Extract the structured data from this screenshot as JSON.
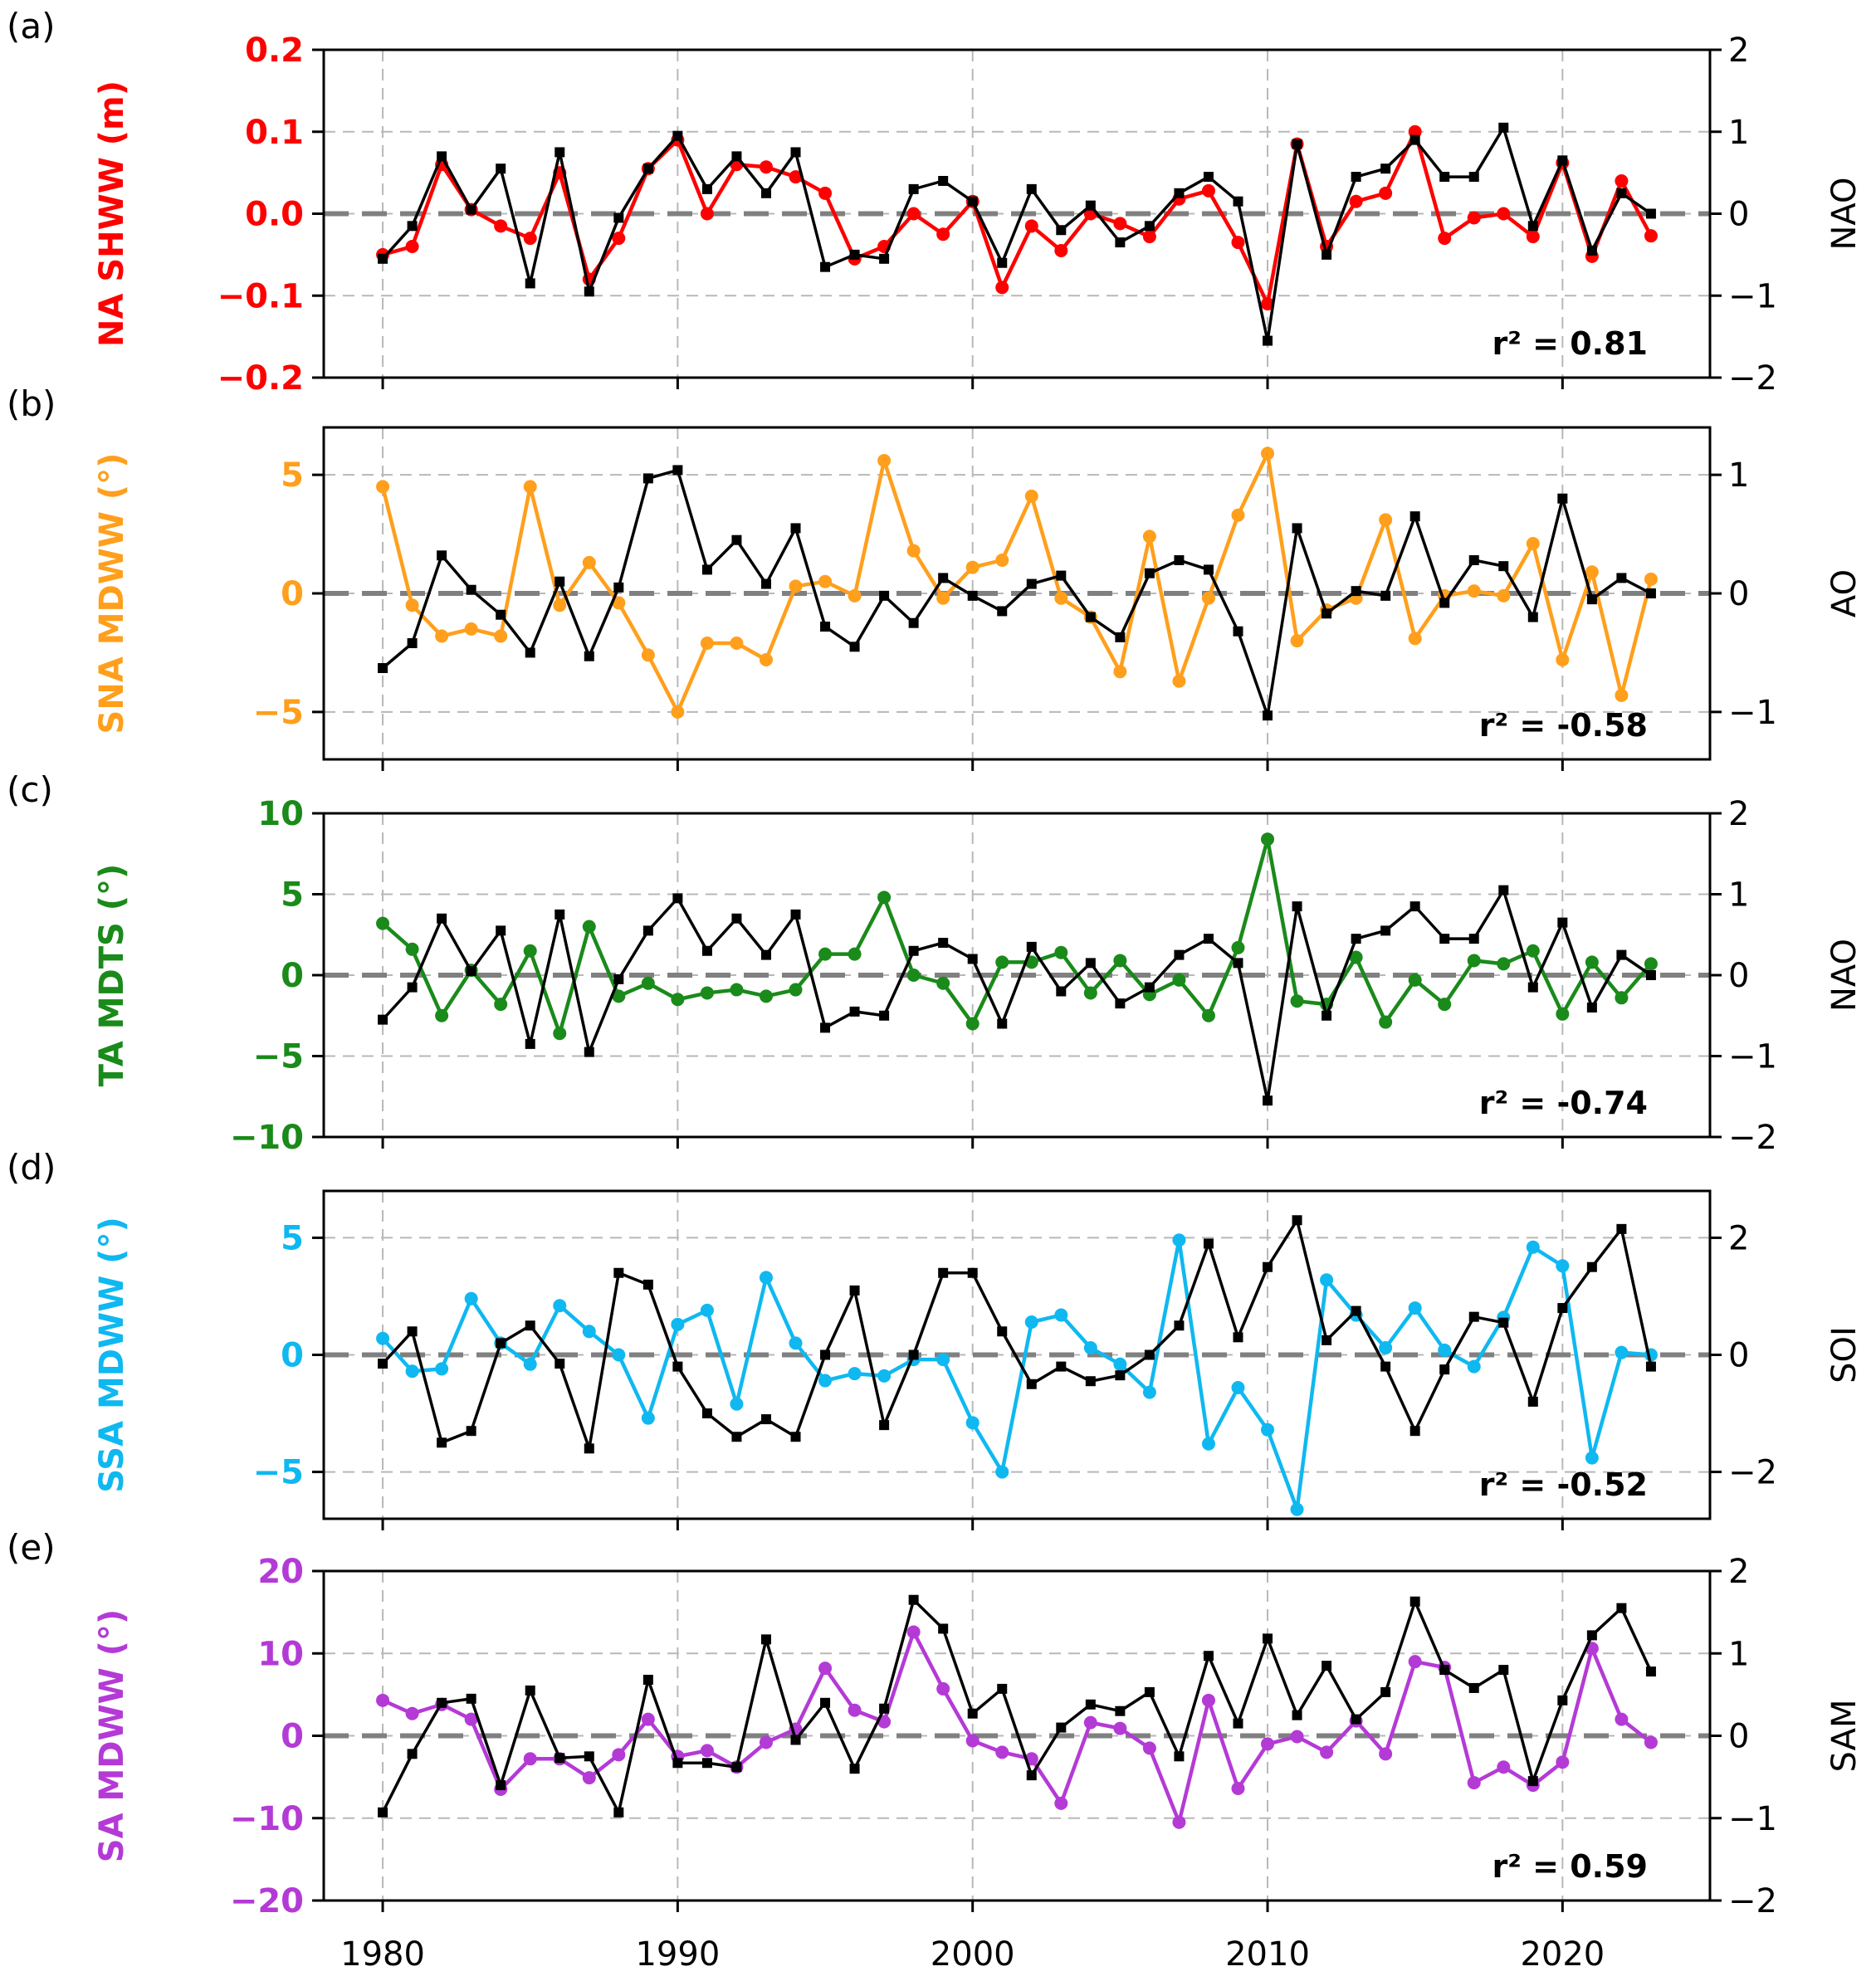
{
  "chart_data": [
    {
      "panel_label": "(a)",
      "type": "line",
      "x": [
        1980,
        1981,
        1982,
        1983,
        1984,
        1985,
        1986,
        1987,
        1988,
        1989,
        1990,
        1991,
        1992,
        1993,
        1994,
        1995,
        1996,
        1997,
        1998,
        1999,
        2000,
        2001,
        2002,
        2003,
        2004,
        2005,
        2006,
        2007,
        2008,
        2009,
        2010,
        2011,
        2012,
        2013,
        2014,
        2015,
        2016,
        2017,
        2018,
        2019,
        2020,
        2021,
        2022,
        2023
      ],
      "left": {
        "label": "NA SHWW (m)",
        "color": "#ff0000",
        "marker": "circle",
        "ylim": [
          -0.2,
          0.2
        ],
        "ticks": [
          -0.2,
          -0.1,
          0.0,
          0.1,
          0.2
        ],
        "tick_labels": [
          "−0.2",
          "−0.1",
          "0.0",
          "0.1",
          "0.2"
        ],
        "values": [
          -0.05,
          -0.04,
          0.06,
          0.005,
          -0.015,
          -0.03,
          0.05,
          -0.08,
          -0.03,
          0.055,
          0.09,
          0.0,
          0.06,
          0.057,
          0.045,
          0.025,
          -0.055,
          -0.04,
          0.0,
          -0.025,
          0.015,
          -0.09,
          -0.015,
          -0.045,
          0.0,
          -0.012,
          -0.028,
          0.018,
          0.028,
          -0.035,
          -0.11,
          0.085,
          -0.04,
          0.015,
          0.025,
          0.1,
          -0.03,
          -0.005,
          0.0,
          -0.028,
          0.062,
          -0.052,
          0.04,
          -0.027
        ]
      },
      "right": {
        "label": "NAO",
        "color": "#000000",
        "marker": "square",
        "ylim": [
          -2,
          2
        ],
        "ticks": [
          -2,
          -1,
          0,
          1,
          2
        ],
        "tick_labels": [
          "−2",
          "−1",
          "0",
          "1",
          "2"
        ],
        "values": [
          -0.55,
          -0.15,
          0.7,
          0.05,
          0.55,
          -0.85,
          0.75,
          -0.95,
          -0.05,
          0.55,
          0.95,
          0.3,
          0.7,
          0.25,
          0.75,
          -0.65,
          -0.5,
          -0.55,
          0.3,
          0.4,
          0.15,
          -0.6,
          0.3,
          -0.2,
          0.1,
          -0.35,
          -0.15,
          0.25,
          0.45,
          0.15,
          -1.55,
          0.85,
          -0.5,
          0.45,
          0.55,
          0.9,
          0.45,
          0.45,
          1.05,
          -0.15,
          0.65,
          -0.45,
          0.25,
          0.0
        ]
      },
      "annotation": "r² = 0.81",
      "zero_line": true,
      "grid": true
    },
    {
      "panel_label": "(b)",
      "type": "line",
      "x": [
        1980,
        1981,
        1982,
        1983,
        1984,
        1985,
        1986,
        1987,
        1988,
        1989,
        1990,
        1991,
        1992,
        1993,
        1994,
        1995,
        1996,
        1997,
        1998,
        1999,
        2000,
        2001,
        2002,
        2003,
        2004,
        2005,
        2006,
        2007,
        2008,
        2009,
        2010,
        2011,
        2012,
        2013,
        2014,
        2015,
        2016,
        2017,
        2018,
        2019,
        2020,
        2021,
        2022,
        2023
      ],
      "left": {
        "label": "SNA MDWW (°)",
        "color": "#ff9f1c",
        "marker": "circle",
        "ylim": [
          -7,
          7
        ],
        "ticks": [
          -5,
          0,
          5
        ],
        "tick_labels": [
          "−5",
          "0",
          "5"
        ],
        "values": [
          4.5,
          -0.5,
          -1.8,
          -1.5,
          -1.8,
          4.5,
          -0.5,
          1.3,
          -0.4,
          -2.6,
          -5.0,
          -2.1,
          -2.1,
          -2.8,
          0.3,
          0.5,
          -0.1,
          5.6,
          1.8,
          -0.2,
          1.1,
          1.4,
          4.1,
          -0.2,
          -1.0,
          -3.3,
          2.4,
          -3.7,
          -0.2,
          3.3,
          5.9,
          -2.0,
          -0.7,
          -0.2,
          3.1,
          -1.9,
          -0.1,
          0.1,
          -0.1,
          2.1,
          -2.8,
          0.9,
          -4.3,
          0.6
        ]
      },
      "right": {
        "label": "AO",
        "color": "#000000",
        "marker": "square",
        "ylim": [
          -1.4,
          1.4
        ],
        "ticks": [
          -1,
          0,
          1
        ],
        "tick_labels": [
          "−1",
          "0",
          "1"
        ],
        "values": [
          -0.63,
          -0.42,
          0.32,
          0.03,
          -0.18,
          -0.5,
          0.1,
          -0.53,
          0.05,
          0.97,
          1.04,
          0.2,
          0.45,
          0.08,
          0.55,
          -0.28,
          -0.45,
          -0.02,
          -0.25,
          0.13,
          -0.02,
          -0.15,
          0.08,
          0.15,
          -0.2,
          -0.37,
          0.17,
          0.28,
          0.2,
          -0.32,
          -1.03,
          0.55,
          -0.17,
          0.02,
          -0.02,
          0.65,
          -0.08,
          0.28,
          0.23,
          -0.2,
          0.8,
          -0.05,
          0.13,
          0.0
        ]
      },
      "annotation": "r² = -0.58",
      "zero_line": true,
      "grid": true
    },
    {
      "panel_label": "(c)",
      "type": "line",
      "x": [
        1980,
        1981,
        1982,
        1983,
        1984,
        1985,
        1986,
        1987,
        1988,
        1989,
        1990,
        1991,
        1992,
        1993,
        1994,
        1995,
        1996,
        1997,
        1998,
        1999,
        2000,
        2001,
        2002,
        2003,
        2004,
        2005,
        2006,
        2007,
        2008,
        2009,
        2010,
        2011,
        2012,
        2013,
        2014,
        2015,
        2016,
        2017,
        2018,
        2019,
        2020,
        2021,
        2022,
        2023
      ],
      "left": {
        "label": "TA MDTS (°)",
        "color": "#1a8a1a",
        "marker": "circle",
        "ylim": [
          -10,
          10
        ],
        "ticks": [
          -10,
          -5,
          0,
          5,
          10
        ],
        "tick_labels": [
          "−10",
          "−5",
          "0",
          "5",
          "10"
        ],
        "values": [
          3.2,
          1.6,
          -2.5,
          0.3,
          -1.8,
          1.5,
          -3.6,
          3.0,
          -1.3,
          -0.5,
          -1.5,
          -1.1,
          -0.9,
          -1.3,
          -0.9,
          1.3,
          1.3,
          4.8,
          0.0,
          -0.5,
          -3.0,
          0.8,
          0.8,
          1.4,
          -1.1,
          0.9,
          -1.2,
          -0.3,
          -2.5,
          1.7,
          8.4,
          -1.6,
          -1.8,
          1.1,
          -2.9,
          -0.3,
          -1.8,
          0.9,
          0.7,
          1.5,
          -2.4,
          0.8,
          -1.4,
          0.7
        ]
      },
      "right": {
        "label": "NAO",
        "color": "#000000",
        "marker": "square",
        "ylim": [
          -2,
          2
        ],
        "ticks": [
          -2,
          -1,
          0,
          1,
          2
        ],
        "tick_labels": [
          "−2",
          "−1",
          "0",
          "1",
          "2"
        ],
        "values": [
          -0.55,
          -0.15,
          0.7,
          0.05,
          0.55,
          -0.85,
          0.75,
          -0.95,
          -0.05,
          0.55,
          0.95,
          0.3,
          0.7,
          0.25,
          0.75,
          -0.65,
          -0.45,
          -0.5,
          0.3,
          0.4,
          0.2,
          -0.6,
          0.35,
          -0.2,
          0.15,
          -0.35,
          -0.15,
          0.25,
          0.45,
          0.15,
          -1.55,
          0.85,
          -0.5,
          0.45,
          0.55,
          0.85,
          0.45,
          0.45,
          1.05,
          -0.15,
          0.65,
          -0.4,
          0.25,
          0.0
        ]
      },
      "annotation": "r² = -0.74",
      "zero_line": true,
      "grid": true
    },
    {
      "panel_label": "(d)",
      "type": "line",
      "x": [
        1980,
        1981,
        1982,
        1983,
        1984,
        1985,
        1986,
        1987,
        1988,
        1989,
        1990,
        1991,
        1992,
        1993,
        1994,
        1995,
        1996,
        1997,
        1998,
        1999,
        2000,
        2001,
        2002,
        2003,
        2004,
        2005,
        2006,
        2007,
        2008,
        2009,
        2010,
        2011,
        2012,
        2013,
        2014,
        2015,
        2016,
        2017,
        2018,
        2019,
        2020,
        2021,
        2022,
        2023
      ],
      "left": {
        "label": "SSA MDWW (°)",
        "color": "#0fb8f0",
        "marker": "circle",
        "ylim": [
          -7,
          7
        ],
        "ticks": [
          -5,
          0,
          5
        ],
        "tick_labels": [
          "−5",
          "0",
          "5"
        ],
        "values": [
          0.7,
          -0.7,
          -0.6,
          2.4,
          0.5,
          -0.4,
          2.1,
          1.0,
          0.0,
          -2.7,
          1.3,
          1.9,
          -2.1,
          3.3,
          0.5,
          -1.1,
          -0.8,
          -0.9,
          -0.2,
          -0.2,
          -2.9,
          -5.0,
          1.4,
          1.7,
          0.3,
          -0.4,
          -1.6,
          4.9,
          -3.8,
          -1.4,
          -3.2,
          -6.6,
          3.2,
          1.7,
          0.3,
          2.0,
          0.2,
          -0.5,
          1.6,
          4.6,
          3.8,
          -4.4,
          0.1,
          0.0
        ]
      },
      "right": {
        "label": "SOI",
        "color": "#000000",
        "marker": "square",
        "ylim": [
          -2.8,
          2.8
        ],
        "ticks": [
          -2,
          0,
          2
        ],
        "tick_labels": [
          "−2",
          "0",
          "2"
        ],
        "values": [
          -0.15,
          0.4,
          -1.5,
          -1.3,
          0.2,
          0.5,
          -0.15,
          -1.6,
          1.4,
          1.2,
          -0.2,
          -1.0,
          -1.4,
          -1.1,
          -1.4,
          0.0,
          1.1,
          -1.2,
          0.0,
          1.4,
          1.4,
          0.4,
          -0.5,
          -0.2,
          -0.45,
          -0.35,
          0.0,
          0.5,
          1.9,
          0.3,
          1.5,
          2.3,
          0.25,
          0.75,
          -0.2,
          -1.3,
          -0.25,
          0.65,
          0.55,
          -0.8,
          0.8,
          1.5,
          2.15,
          -0.2
        ]
      },
      "annotation": "r² = -0.52",
      "zero_line": true,
      "grid": true
    },
    {
      "panel_label": "(e)",
      "type": "line",
      "x": [
        1980,
        1981,
        1982,
        1983,
        1984,
        1985,
        1986,
        1987,
        1988,
        1989,
        1990,
        1991,
        1992,
        1993,
        1994,
        1995,
        1996,
        1997,
        1998,
        1999,
        2000,
        2001,
        2002,
        2003,
        2004,
        2005,
        2006,
        2007,
        2008,
        2009,
        2010,
        2011,
        2012,
        2013,
        2014,
        2015,
        2016,
        2017,
        2018,
        2019,
        2020,
        2021,
        2022,
        2023
      ],
      "left": {
        "label": "SA MDWW (°)",
        "color": "#b43ad6",
        "marker": "circle",
        "ylim": [
          -20,
          20
        ],
        "ticks": [
          -20,
          -10,
          0,
          10,
          20
        ],
        "tick_labels": [
          "−20",
          "−10",
          "0",
          "10",
          "20"
        ],
        "values": [
          4.3,
          2.7,
          3.8,
          2.0,
          -6.5,
          -2.8,
          -2.8,
          -5.1,
          -2.3,
          2.0,
          -2.5,
          -1.8,
          -3.8,
          -0.8,
          0.8,
          8.2,
          3.1,
          1.7,
          12.6,
          5.7,
          -0.6,
          -2.0,
          -2.8,
          -8.2,
          1.6,
          0.9,
          -1.5,
          -10.5,
          4.3,
          -6.4,
          -1.0,
          -0.1,
          -2.0,
          1.8,
          -2.2,
          9.0,
          8.3,
          -5.7,
          -3.8,
          -6.0,
          -3.2,
          10.6,
          2.0,
          -0.8
        ]
      },
      "right": {
        "label": "SAM",
        "color": "#000000",
        "marker": "square",
        "ylim": [
          -2,
          2
        ],
        "ticks": [
          -2,
          -1,
          0,
          1,
          2
        ],
        "tick_labels": [
          "−2",
          "−1",
          "0",
          "1",
          "2"
        ],
        "values": [
          -0.93,
          -0.22,
          0.4,
          0.45,
          -0.6,
          0.55,
          -0.27,
          -0.25,
          -0.93,
          0.68,
          -0.33,
          -0.33,
          -0.38,
          1.17,
          -0.05,
          0.4,
          -0.4,
          0.33,
          1.65,
          1.3,
          0.27,
          0.57,
          -0.48,
          0.1,
          0.38,
          0.3,
          0.53,
          -0.25,
          0.97,
          0.15,
          1.18,
          0.25,
          0.85,
          0.2,
          0.53,
          1.63,
          0.8,
          0.58,
          0.8,
          -0.55,
          0.43,
          1.22,
          1.55,
          0.78
        ]
      },
      "annotation": "r² = 0.59",
      "zero_line": true,
      "grid": true
    }
  ],
  "shared_x": {
    "xlim": [
      1978,
      2025
    ],
    "ticks": [
      1980,
      1990,
      2000,
      2010,
      2020
    ],
    "tick_labels": [
      "1980",
      "1990",
      "2000",
      "2010",
      "2020"
    ]
  }
}
